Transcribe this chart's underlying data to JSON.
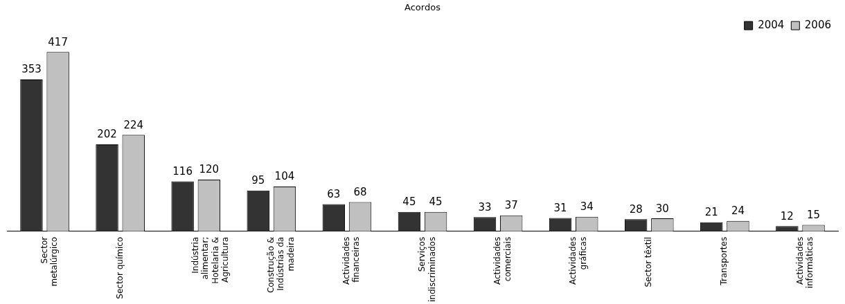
{
  "chart_data": {
    "type": "bar",
    "title": "Acordos",
    "categories": [
      "Sector metalúrgico",
      "Sector químico",
      "Indústria alimentar; Hotelaria & Agricultura",
      "Construção & Indústrias da madeira",
      "Actividades financeiras",
      "Serviços indiscriminados",
      "Actividades comerciais",
      "Actividades gráficas",
      "Sector têxtil",
      "Transportes",
      "Actividades informáticas"
    ],
    "series": [
      {
        "name": "2004",
        "color": "#333333",
        "values": [
          353,
          202,
          116,
          95,
          63,
          45,
          33,
          31,
          28,
          21,
          12
        ]
      },
      {
        "name": "2006",
        "color": "#c0c0c0",
        "values": [
          417,
          224,
          120,
          104,
          68,
          45,
          37,
          34,
          30,
          24,
          15
        ]
      }
    ],
    "data_labels": true,
    "grid": false,
    "legend": "top right"
  }
}
